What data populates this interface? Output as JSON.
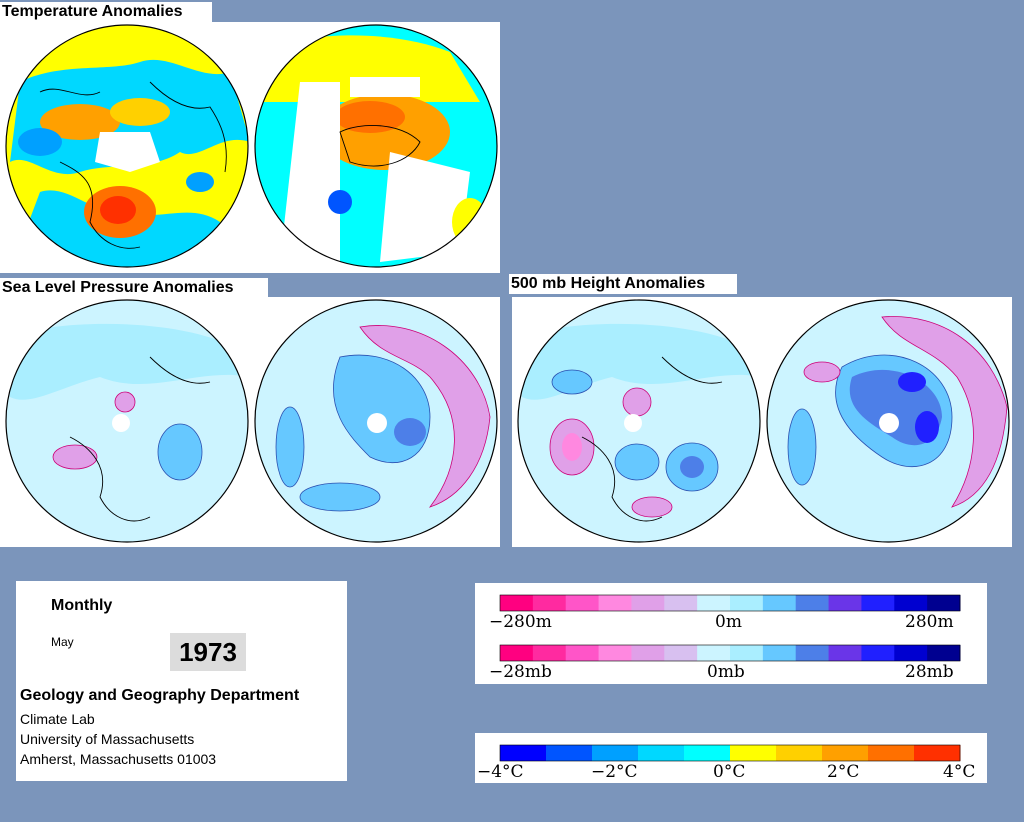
{
  "sections": {
    "temperature_title": "Temperature Anomalies",
    "slp_title": "Sea Level Pressure Anomalies",
    "height_title": "500 mb Height Anomalies"
  },
  "info": {
    "period": "Monthly",
    "month": "May",
    "year": "1973",
    "department": "Geology and Geography Department",
    "lab": "Climate Lab",
    "university": "University of Massachusetts",
    "address": "Amherst, Massachusetts 01003"
  },
  "legends": {
    "height": {
      "labels": [
        "−280m",
        "0m",
        "280m"
      ],
      "range_m": [
        -280,
        280
      ]
    },
    "pressure": {
      "labels": [
        "−28mb",
        "0mb",
        "28mb"
      ],
      "range_mb": [
        -28,
        28
      ]
    },
    "temperature": {
      "labels": [
        "−4°C",
        "−2°C",
        "0°C",
        "2°C",
        "4°C"
      ],
      "range_c": [
        -4,
        4
      ]
    }
  },
  "colors": {
    "background": "#7b95bb",
    "anomaly_scale_blue_to_pink": [
      "#ff0080",
      "#ff2aa0",
      "#ff55c8",
      "#ff88e0",
      "#e0a0e8",
      "#d8c0f0",
      "#ccf4ff",
      "#aaeeff",
      "#66c8ff",
      "#4d7fe8",
      "#6a35e8",
      "#2020ff",
      "#0000d0",
      "#000090"
    ],
    "temperature_scale": [
      "#0000ff",
      "#0055ff",
      "#00a0ff",
      "#00d8ff",
      "#00ffff",
      "#ffff00",
      "#ffd000",
      "#ffa000",
      "#ff7000",
      "#ff3000"
    ]
  }
}
